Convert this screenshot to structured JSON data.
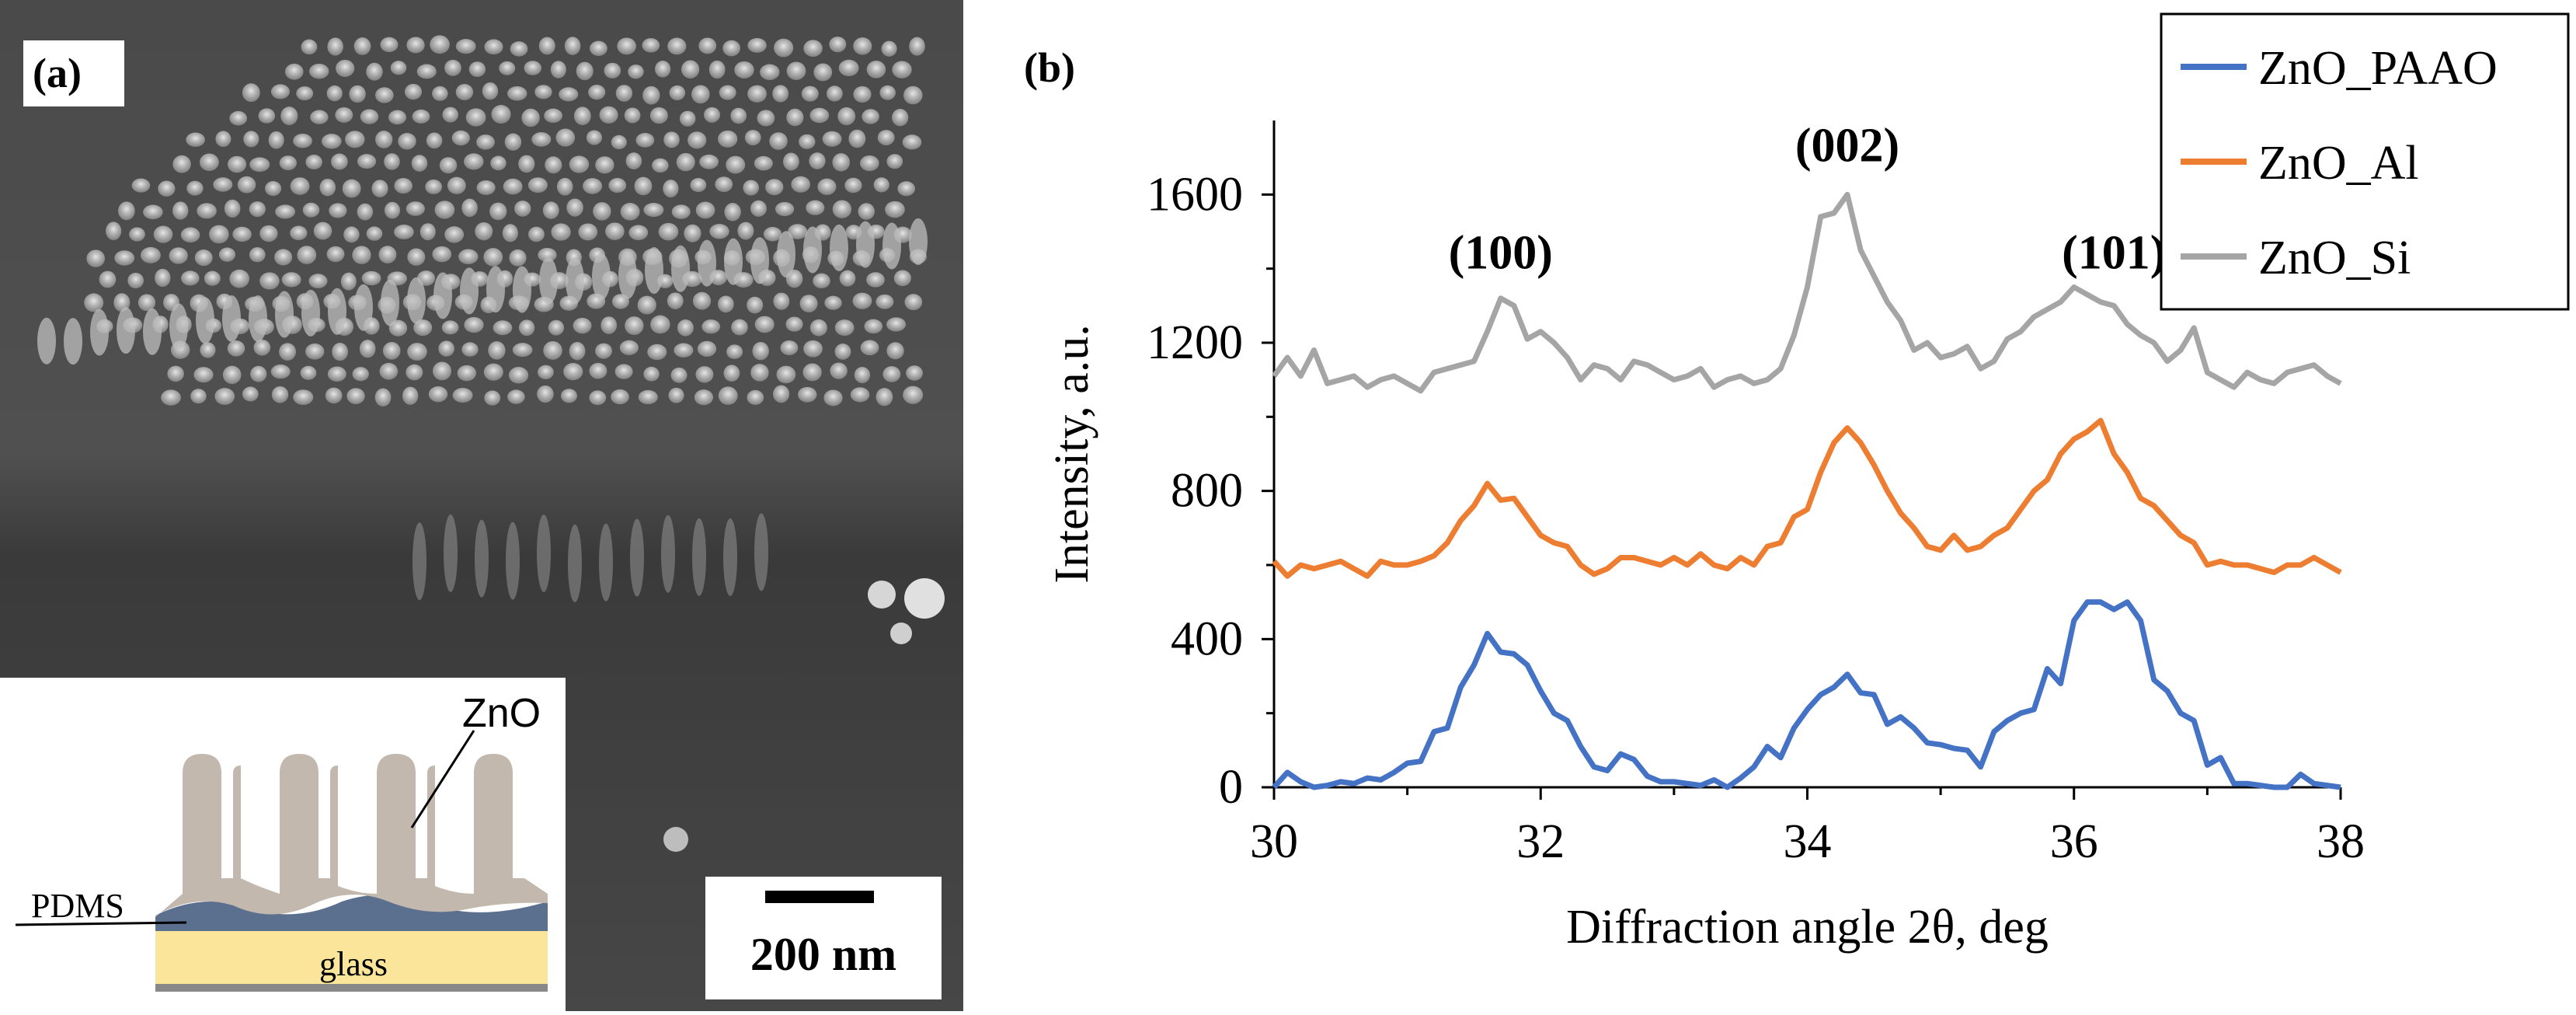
{
  "panel_a": {
    "label": "(a)",
    "scale_bar": "200 nm",
    "inset": {
      "zno": "ZnO",
      "pdms": "PDMS",
      "glass": "glass"
    }
  },
  "panel_b": {
    "label": "(b)"
  },
  "chart_data": {
    "type": "line",
    "xlabel": "Diffraction angle 2θ, deg",
    "ylabel": "Intensity, a.u.",
    "xlim": [
      30,
      38
    ],
    "ylim": [
      0,
      1800
    ],
    "xticks": [
      30,
      32,
      34,
      36,
      38
    ],
    "yticks": [
      0,
      400,
      800,
      1200,
      1600
    ],
    "legend_position": "top-right",
    "annotations": [
      {
        "text": "(100)",
        "x": 31.7,
        "y": 1400
      },
      {
        "text": "(002)",
        "x": 34.3,
        "y": 1690
      },
      {
        "text": "(101)",
        "x": 36.3,
        "y": 1400
      }
    ],
    "x": [
      30.0,
      30.1,
      30.2,
      30.3,
      30.4,
      30.5,
      30.6,
      30.7,
      30.8,
      30.9,
      31.0,
      31.1,
      31.2,
      31.3,
      31.4,
      31.5,
      31.6,
      31.7,
      31.8,
      31.9,
      32.0,
      32.1,
      32.2,
      32.3,
      32.4,
      32.5,
      32.6,
      32.7,
      32.8,
      32.9,
      33.0,
      33.1,
      33.2,
      33.3,
      33.4,
      33.5,
      33.6,
      33.7,
      33.8,
      33.9,
      34.0,
      34.1,
      34.2,
      34.3,
      34.4,
      34.5,
      34.6,
      34.7,
      34.8,
      34.9,
      35.0,
      35.1,
      35.2,
      35.3,
      35.4,
      35.5,
      35.6,
      35.7,
      35.8,
      35.9,
      36.0,
      36.1,
      36.2,
      36.3,
      36.4,
      36.5,
      36.6,
      36.7,
      36.8,
      36.9,
      37.0,
      37.1,
      37.2,
      37.3,
      37.4,
      37.5,
      37.6,
      37.7,
      37.8,
      37.9,
      38.0
    ],
    "series": [
      {
        "name": "ZnO_PAAO",
        "color": "#4472C4",
        "values": [
          0,
          40,
          15,
          0,
          5,
          15,
          10,
          25,
          20,
          40,
          65,
          70,
          150,
          160,
          270,
          330,
          415,
          365,
          360,
          330,
          260,
          200,
          180,
          110,
          55,
          45,
          90,
          75,
          30,
          15,
          15,
          10,
          5,
          20,
          0,
          25,
          55,
          110,
          80,
          160,
          210,
          250,
          270,
          305,
          255,
          250,
          170,
          190,
          160,
          120,
          115,
          105,
          100,
          55,
          150,
          180,
          200,
          210,
          320,
          280,
          450,
          500,
          500,
          480,
          500,
          450,
          290,
          260,
          200,
          180,
          60,
          80,
          10,
          10,
          5,
          0,
          0,
          35,
          10,
          5,
          0
        ]
      },
      {
        "name": "ZnO_Al",
        "color": "#ED7D31",
        "values": [
          610,
          570,
          600,
          590,
          600,
          610,
          590,
          570,
          610,
          600,
          600,
          610,
          625,
          660,
          720,
          760,
          820,
          775,
          780,
          730,
          680,
          660,
          650,
          600,
          575,
          590,
          620,
          620,
          610,
          600,
          620,
          600,
          630,
          600,
          590,
          620,
          600,
          650,
          660,
          730,
          750,
          850,
          930,
          970,
          930,
          870,
          800,
          740,
          700,
          650,
          640,
          680,
          640,
          650,
          680,
          700,
          750,
          800,
          830,
          900,
          940,
          960,
          990,
          900,
          850,
          780,
          760,
          720,
          680,
          660,
          600,
          610,
          600,
          600,
          590,
          580,
          600,
          600,
          620,
          600,
          580
        ]
      },
      {
        "name": "ZnO_Si",
        "color": "#A5A5A5",
        "values": [
          1110,
          1160,
          1110,
          1180,
          1090,
          1100,
          1110,
          1080,
          1100,
          1110,
          1090,
          1070,
          1120,
          1130,
          1140,
          1150,
          1230,
          1320,
          1300,
          1210,
          1230,
          1200,
          1160,
          1100,
          1140,
          1130,
          1100,
          1150,
          1140,
          1120,
          1100,
          1110,
          1130,
          1080,
          1100,
          1110,
          1090,
          1100,
          1130,
          1220,
          1350,
          1540,
          1550,
          1600,
          1450,
          1380,
          1310,
          1260,
          1180,
          1200,
          1160,
          1170,
          1190,
          1130,
          1150,
          1210,
          1230,
          1270,
          1290,
          1310,
          1350,
          1330,
          1310,
          1300,
          1250,
          1220,
          1200,
          1150,
          1180,
          1240,
          1120,
          1100,
          1080,
          1120,
          1100,
          1090,
          1120,
          1130,
          1140,
          1110,
          1090
        ]
      }
    ]
  }
}
